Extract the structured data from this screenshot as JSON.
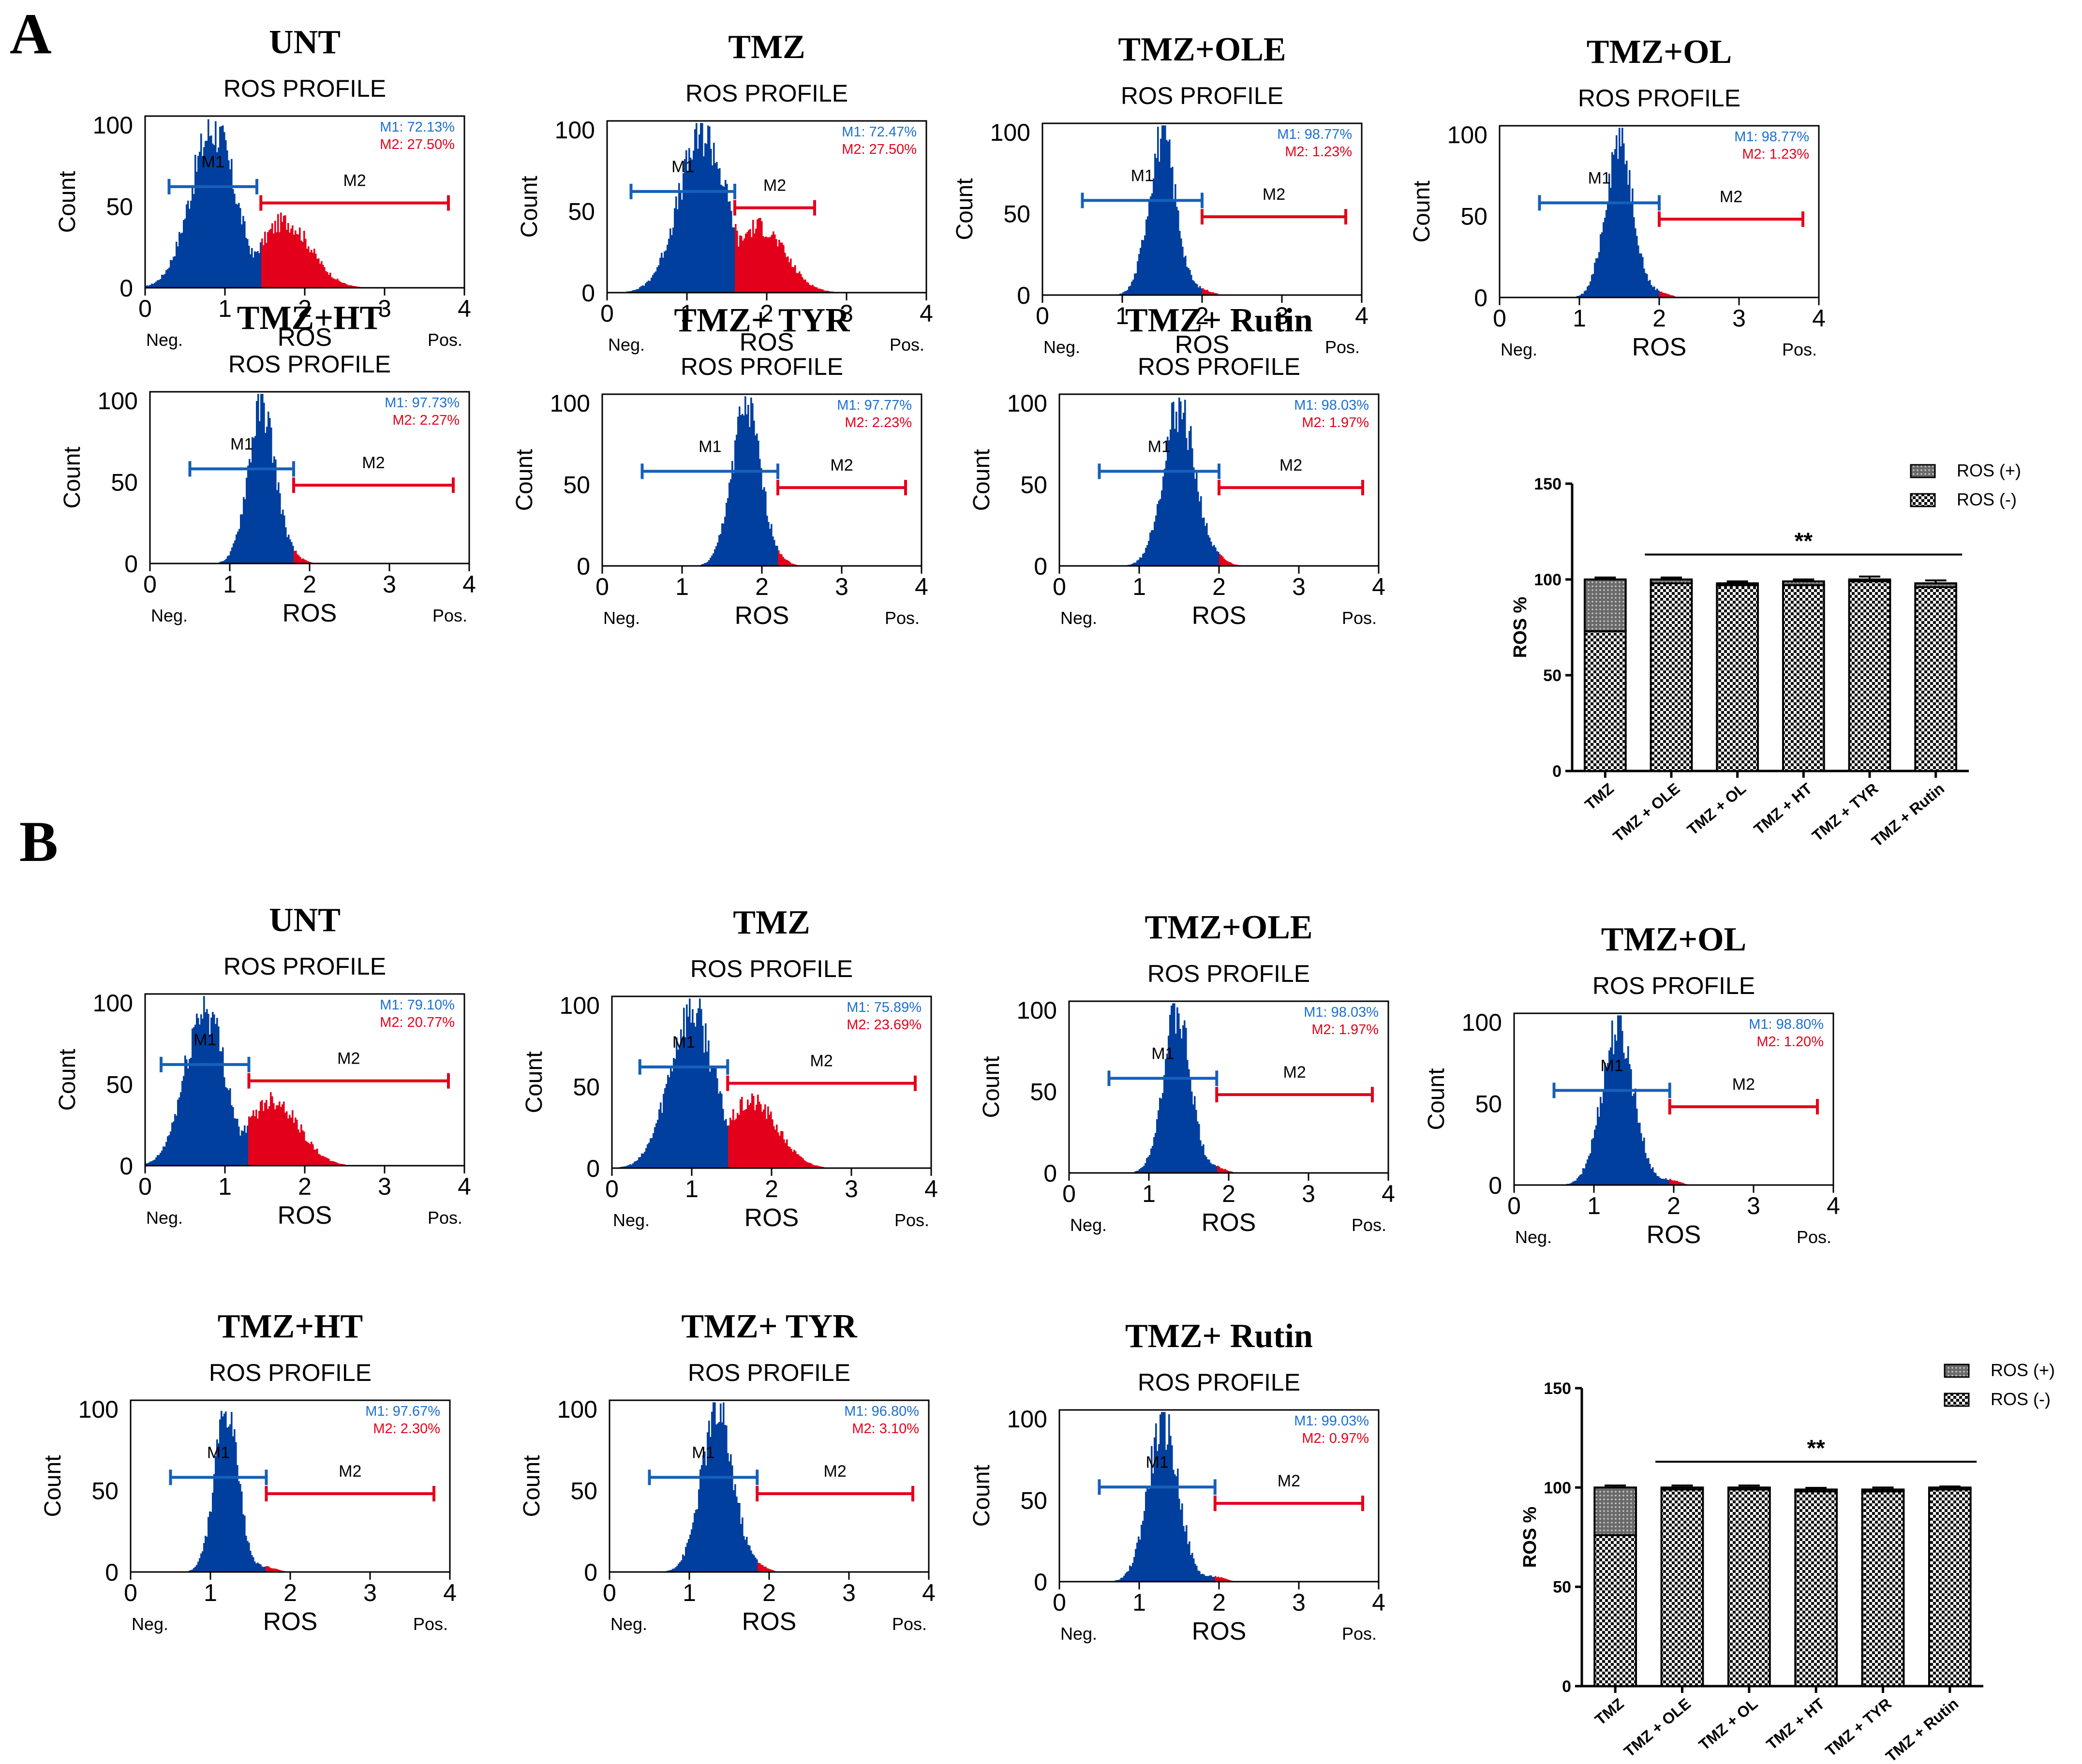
{
  "colors": {
    "m1": "#003f9e",
    "m2": "#e3001b",
    "m1_text": "#1a6fd1",
    "m2_text": "#e3001b",
    "bar_ink": "#000000"
  },
  "icons": {
    "pos_pattern": "dotted-dark-swatch",
    "neg_pattern": "checker-swatch"
  },
  "chart_data": {
    "type": "composite",
    "panels": [
      {
        "label": "A",
        "histograms": [
          {
            "title": "UNT",
            "subtitle": "ROS PROFILE",
            "m1_text": "M1: 72.13%",
            "m2_text": "M2: 27.50%",
            "gate_label_1": "M1",
            "gate_label_2": "M2",
            "peak_x": 0.85,
            "sd": 0.28,
            "split": 1.45,
            "tail": "big",
            "m1_range": [
              0.3,
              1.4
            ],
            "m2_range": [
              1.45,
              3.8
            ],
            "x_ticks": [
              "0",
              "1",
              "2",
              "3",
              "4"
            ],
            "y_ticks": [
              "0",
              "50",
              "100"
            ],
            "xlabel": "ROS",
            "ylabel": "Count",
            "neg_label": "Neg.",
            "pos_label": "Pos.",
            "xlim": [
              0,
              4
            ],
            "ylim": [
              0,
              100
            ]
          },
          {
            "title": "TMZ",
            "subtitle": "ROS PROFILE",
            "m1_text": "M1: 72.47%",
            "m2_text": "M2: 27.50%",
            "gate_label_1": "M1",
            "gate_label_2": "M2",
            "peak_x": 1.2,
            "sd": 0.3,
            "split": 1.6,
            "tail": "big",
            "m1_range": [
              0.3,
              1.6
            ],
            "m2_range": [
              1.6,
              2.6
            ],
            "x_ticks": [
              "0",
              "1",
              "2",
              "3",
              "4"
            ],
            "y_ticks": [
              "0",
              "50",
              "100"
            ],
            "xlabel": "ROS",
            "ylabel": "Count",
            "neg_label": "Neg.",
            "pos_label": "Pos.",
            "xlim": [
              0,
              4
            ],
            "ylim": [
              0,
              100
            ]
          },
          {
            "title": "TMZ+OLE",
            "subtitle": "ROS PROFILE",
            "m1_text": "M1: 98.77%",
            "m2_text": "M2: 1.23%",
            "gate_label_1": "M1",
            "gate_label_2": "M2",
            "peak_x": 1.5,
            "sd": 0.17,
            "split": 2.0,
            "tail": "small",
            "m1_range": [
              0.5,
              2.0
            ],
            "m2_range": [
              2.0,
              3.8
            ],
            "x_ticks": [
              "0",
              "1",
              "2",
              "3",
              "4"
            ],
            "y_ticks": [
              "0",
              "50",
              "100"
            ],
            "xlabel": "ROS",
            "ylabel": "Count",
            "neg_label": "Neg.",
            "pos_label": "Pos.",
            "xlim": [
              0,
              4
            ],
            "ylim": [
              0,
              100
            ]
          },
          {
            "title": "TMZ+OL",
            "subtitle": "ROS PROFILE",
            "m1_text": "M1: 98.77%",
            "m2_text": "M2: 1.23%",
            "gate_label_1": "M1",
            "gate_label_2": "M2",
            "peak_x": 1.5,
            "sd": 0.17,
            "split": 2.0,
            "tail": "small",
            "m1_range": [
              0.5,
              2.0
            ],
            "m2_range": [
              2.0,
              3.8
            ],
            "x_ticks": [
              "0",
              "1",
              "2",
              "3",
              "4"
            ],
            "y_ticks": [
              "0",
              "50",
              "100"
            ],
            "xlabel": "ROS",
            "ylabel": "Count",
            "neg_label": "Neg.",
            "pos_label": "Pos.",
            "xlim": [
              0,
              4
            ],
            "ylim": [
              0,
              100
            ]
          },
          {
            "title": "TMZ+HT",
            "subtitle": "ROS PROFILE",
            "m1_text": "M1: 97.73%",
            "m2_text": "M2: 2.27%",
            "gate_label_1": "M1",
            "gate_label_2": "M2",
            "peak_x": 1.4,
            "sd": 0.17,
            "split": 1.8,
            "tail": "small",
            "m1_range": [
              0.5,
              1.8
            ],
            "m2_range": [
              1.8,
              3.8
            ],
            "x_ticks": [
              "0",
              "1",
              "2",
              "3",
              "4"
            ],
            "y_ticks": [
              "0",
              "50",
              "100"
            ],
            "xlabel": "ROS",
            "ylabel": "Count",
            "neg_label": "Neg.",
            "pos_label": "Pos.",
            "xlim": [
              0,
              4
            ],
            "ylim": [
              0,
              100
            ]
          },
          {
            "title": "TMZ+ TYR",
            "subtitle": "ROS PROFILE",
            "m1_text": "M1: 97.77%",
            "m2_text": "M2: 2.23%",
            "gate_label_1": "M1",
            "gate_label_2": "M2",
            "peak_x": 1.8,
            "sd": 0.18,
            "split": 2.2,
            "tail": "small",
            "m1_range": [
              0.5,
              2.2
            ],
            "m2_range": [
              2.2,
              3.8
            ],
            "x_ticks": [
              "0",
              "1",
              "2",
              "3",
              "4"
            ],
            "y_ticks": [
              "0",
              "50",
              "100"
            ],
            "xlabel": "ROS",
            "ylabel": "Count",
            "neg_label": "Neg.",
            "pos_label": "Pos.",
            "xlim": [
              0,
              4
            ],
            "ylim": [
              0,
              100
            ]
          },
          {
            "title": "TMZ+ Rutin",
            "subtitle": "ROS PROFILE",
            "m1_text": "M1: 98.03%",
            "m2_text": "M2: 1.97%",
            "gate_label_1": "M1",
            "gate_label_2": "M2",
            "peak_x": 1.5,
            "sd": 0.2,
            "split": 2.0,
            "tail": "small",
            "m1_range": [
              0.5,
              2.0
            ],
            "m2_range": [
              2.0,
              3.8
            ],
            "x_ticks": [
              "0",
              "1",
              "2",
              "3",
              "4"
            ],
            "y_ticks": [
              "0",
              "50",
              "100"
            ],
            "xlabel": "ROS",
            "ylabel": "Count",
            "neg_label": "Neg.",
            "pos_label": "Pos.",
            "xlim": [
              0,
              4
            ],
            "ylim": [
              0,
              100
            ]
          }
        ],
        "bar_chart": {
          "type": "bar",
          "stacked": true,
          "categories": [
            "TMZ",
            "TMZ + OLE",
            "TMZ + OL",
            "TMZ + HT",
            "TMZ + TYR",
            "TMZ + Rutin"
          ],
          "series": [
            {
              "name": "ROS (+)",
              "values": [
                27,
                2,
                1,
                2,
                1,
                2
              ]
            },
            {
              "name": "ROS (-)",
              "values": [
                73,
                98,
                97,
                97,
                99,
                96
              ]
            }
          ],
          "errors": [
            1,
            1,
            1,
            1,
            1.5,
            1.5
          ],
          "ylabel": "ROS %",
          "y_ticks": [
            "0",
            "50",
            "100",
            "150"
          ],
          "ylim": [
            0,
            150
          ],
          "significance": "**",
          "significance_span": [
            "TMZ + OLE",
            "TMZ + Rutin"
          ],
          "legend": "top-right"
        }
      },
      {
        "label": "B",
        "histograms": [
          {
            "title": "UNT",
            "subtitle": "ROS PROFILE",
            "m1_text": "M1: 79.10%",
            "m2_text": "M2: 20.77%",
            "gate_label_1": "M1",
            "gate_label_2": "M2",
            "peak_x": 0.75,
            "sd": 0.25,
            "split": 1.3,
            "tail": "big",
            "m1_range": [
              0.2,
              1.3
            ],
            "m2_range": [
              1.3,
              3.8
            ],
            "x_ticks": [
              "0",
              "1",
              "2",
              "3",
              "4"
            ],
            "y_ticks": [
              "0",
              "50",
              "100"
            ],
            "xlabel": "ROS",
            "ylabel": "Count",
            "neg_label": "Neg.",
            "pos_label": "Pos.",
            "xlim": [
              0,
              4
            ],
            "ylim": [
              0,
              100
            ]
          },
          {
            "title": "TMZ",
            "subtitle": "ROS PROFILE",
            "m1_text": "M1: 75.89%",
            "m2_text": "M2: 23.69%",
            "gate_label_1": "M1",
            "gate_label_2": "M2",
            "peak_x": 1.0,
            "sd": 0.28,
            "split": 1.45,
            "tail": "big",
            "m1_range": [
              0.35,
              1.45
            ],
            "m2_range": [
              1.45,
              3.8
            ],
            "x_ticks": [
              "0",
              "1",
              "2",
              "3",
              "4"
            ],
            "y_ticks": [
              "0",
              "50",
              "100"
            ],
            "xlabel": "ROS",
            "ylabel": "Count",
            "neg_label": "Neg.",
            "pos_label": "Pos.",
            "xlim": [
              0,
              4
            ],
            "ylim": [
              0,
              100
            ]
          },
          {
            "title": "TMZ+OLE",
            "subtitle": "ROS PROFILE",
            "m1_text": "M1: 98.03%",
            "m2_text": "M2: 1.97%",
            "gate_label_1": "M1",
            "gate_label_2": "M2",
            "peak_x": 1.35,
            "sd": 0.17,
            "split": 1.85,
            "tail": "small",
            "m1_range": [
              0.5,
              1.85
            ],
            "m2_range": [
              1.85,
              3.8
            ],
            "x_ticks": [
              "0",
              "1",
              "2",
              "3",
              "4"
            ],
            "y_ticks": [
              "0",
              "50",
              "100"
            ],
            "xlabel": "ROS",
            "ylabel": "Count",
            "neg_label": "Neg.",
            "pos_label": "Pos.",
            "xlim": [
              0,
              4
            ],
            "ylim": [
              0,
              100
            ]
          },
          {
            "title": "TMZ+OL",
            "subtitle": "ROS PROFILE",
            "m1_text": "M1: 98.80%",
            "m2_text": "M2: 1.20%",
            "gate_label_1": "M1",
            "gate_label_2": "M2",
            "peak_x": 1.3,
            "sd": 0.2,
            "split": 1.95,
            "tail": "small",
            "m1_range": [
              0.5,
              1.95
            ],
            "m2_range": [
              1.95,
              3.8
            ],
            "x_ticks": [
              "0",
              "1",
              "2",
              "3",
              "4"
            ],
            "y_ticks": [
              "0",
              "50",
              "100"
            ],
            "xlabel": "ROS",
            "ylabel": "Count",
            "neg_label": "Neg.",
            "pos_label": "Pos.",
            "xlim": [
              0,
              4
            ],
            "ylim": [
              0,
              100
            ]
          },
          {
            "title": "TMZ+HT",
            "subtitle": "ROS PROFILE",
            "m1_text": "M1: 97.67%",
            "m2_text": "M2: 2.30%",
            "gate_label_1": "M1",
            "gate_label_2": "M2",
            "peak_x": 1.2,
            "sd": 0.15,
            "split": 1.7,
            "tail": "small",
            "m1_range": [
              0.5,
              1.7
            ],
            "m2_range": [
              1.7,
              3.8
            ],
            "x_ticks": [
              "0",
              "1",
              "2",
              "3",
              "4"
            ],
            "y_ticks": [
              "0",
              "50",
              "100"
            ],
            "xlabel": "ROS",
            "ylabel": "Count",
            "neg_label": "Neg.",
            "pos_label": "Pos.",
            "xlim": [
              0,
              4
            ],
            "ylim": [
              0,
              100
            ]
          },
          {
            "title": "TMZ+ TYR",
            "subtitle": "ROS PROFILE",
            "m1_text": "M1: 96.80%",
            "m2_text": "M2: 3.10%",
            "gate_label_1": "M1",
            "gate_label_2": "M2",
            "peak_x": 1.35,
            "sd": 0.2,
            "split": 1.85,
            "tail": "small",
            "m1_range": [
              0.5,
              1.85
            ],
            "m2_range": [
              1.85,
              3.8
            ],
            "x_ticks": [
              "0",
              "1",
              "2",
              "3",
              "4"
            ],
            "y_ticks": [
              "0",
              "50",
              "100"
            ],
            "xlabel": "ROS",
            "ylabel": "Count",
            "neg_label": "Neg.",
            "pos_label": "Pos.",
            "xlim": [
              0,
              4
            ],
            "ylim": [
              0,
              100
            ]
          },
          {
            "title": "TMZ+ Rutin",
            "subtitle": "ROS PROFILE",
            "m1_text": "M1: 99.03%",
            "m2_text": "M2: 0.97%",
            "gate_label_1": "M1",
            "gate_label_2": "M2",
            "peak_x": 1.3,
            "sd": 0.19,
            "split": 1.95,
            "tail": "small",
            "m1_range": [
              0.5,
              1.95
            ],
            "m2_range": [
              1.95,
              3.8
            ],
            "x_ticks": [
              "0",
              "1",
              "2",
              "3",
              "4"
            ],
            "y_ticks": [
              "0",
              "50",
              "100"
            ],
            "xlabel": "ROS",
            "ylabel": "Count",
            "neg_label": "Neg.",
            "pos_label": "Pos.",
            "xlim": [
              0,
              4
            ],
            "ylim": [
              0,
              100
            ]
          }
        ],
        "bar_chart": {
          "type": "bar",
          "stacked": true,
          "categories": [
            "TMZ",
            "TMZ + OLE",
            "TMZ + OL",
            "TMZ + HT",
            "TMZ + TYR",
            "TMZ + Rutin"
          ],
          "series": [
            {
              "name": "ROS (+)",
              "values": [
                24,
                1,
                1,
                1,
                1,
                1
              ]
            },
            {
              "name": "ROS (-)",
              "values": [
                76,
                99,
                99,
                98,
                98,
                99
              ]
            }
          ],
          "errors": [
            1,
            1,
            1,
            0.8,
            1,
            0.5
          ],
          "ylabel": "ROS %",
          "y_ticks": [
            "0",
            "50",
            "100",
            "150"
          ],
          "ylim": [
            0,
            150
          ],
          "significance": "**",
          "significance_span": [
            "TMZ + OLE",
            "TMZ + Rutin"
          ],
          "legend": "top-right"
        }
      }
    ]
  }
}
